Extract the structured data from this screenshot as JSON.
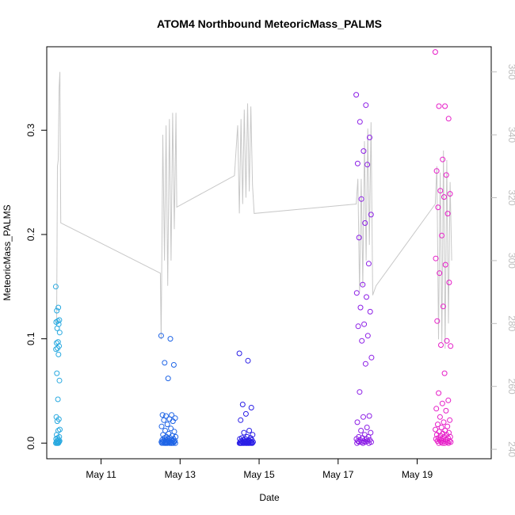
{
  "chart_data": {
    "type": "scatter",
    "title": "ATOM4 Northbound MeteoricMass_PALMS",
    "xlabel": "Date",
    "ylabel": "MeteoricMass_PALMS",
    "x_range": [
      "2018-05-09T15:00",
      "2018-05-20T21:00"
    ],
    "ylim": [
      -0.015,
      0.38
    ],
    "x_ticks": [
      {
        "date": "2018-05-11",
        "label": "May 11"
      },
      {
        "date": "2018-05-13",
        "label": "May 13"
      },
      {
        "date": "2018-05-15",
        "label": "May 15"
      },
      {
        "date": "2018-05-17",
        "label": "May 17"
      },
      {
        "date": "2018-05-19",
        "label": "May 19"
      }
    ],
    "y_ticks": [
      0.0,
      0.1,
      0.2,
      0.3
    ],
    "y_tick_labels": [
      "0.0",
      "0.1",
      "0.2",
      "0.3"
    ],
    "y2_range": [
      237,
      368
    ],
    "y2_ticks": [
      240,
      260,
      280,
      300,
      320,
      340,
      360
    ],
    "grid": false,
    "flights": [
      {
        "color": "#29a9e0",
        "start": "2018-05-09T20:30",
        "end": "2018-05-09T23:00",
        "values": [
          0.15,
          0.13,
          0.127,
          0.118,
          0.117,
          0.116,
          0.114,
          0.11,
          0.106,
          0.097,
          0.096,
          0.093,
          0.091,
          0.09,
          0.085,
          0.067,
          0.06,
          0.042,
          0.025,
          0.023,
          0.021,
          0.013,
          0.012,
          0.008,
          0.006,
          0.005,
          0.004,
          0.003,
          0.002,
          0.002,
          0.001,
          0.001,
          0.001,
          0.0,
          0.0,
          0.0,
          0.0
        ]
      },
      {
        "color": "#1e64e6",
        "start": "2018-05-12T12:30",
        "end": "2018-05-12T21:30",
        "values": [
          0.103,
          0.1,
          0.077,
          0.075,
          0.062,
          0.027,
          0.027,
          0.026,
          0.024,
          0.023,
          0.022,
          0.021,
          0.018,
          0.016,
          0.014,
          0.012,
          0.011,
          0.009,
          0.008,
          0.007,
          0.006,
          0.006,
          0.005,
          0.005,
          0.004,
          0.004,
          0.003,
          0.003,
          0.003,
          0.002,
          0.002,
          0.002,
          0.002,
          0.001,
          0.001,
          0.001,
          0.001,
          0.001,
          0.001,
          0.001,
          0.0,
          0.0,
          0.0,
          0.0,
          0.0,
          0.0,
          0.0,
          0.0,
          0.0,
          0.0
        ]
      },
      {
        "color": "#2a1ee6",
        "start": "2018-05-14T12:00",
        "end": "2018-05-14T20:30",
        "values": [
          0.086,
          0.079,
          0.037,
          0.034,
          0.028,
          0.022,
          0.012,
          0.01,
          0.008,
          0.006,
          0.005,
          0.005,
          0.004,
          0.004,
          0.003,
          0.003,
          0.003,
          0.002,
          0.002,
          0.002,
          0.001,
          0.001,
          0.001,
          0.001,
          0.001,
          0.001,
          0.0,
          0.0,
          0.0,
          0.0,
          0.0,
          0.0,
          0.0,
          0.0,
          0.0,
          0.0,
          0.0,
          0.0,
          0.0,
          0.0
        ]
      },
      {
        "color": "#8c1ee6",
        "start": "2018-05-17T11:00",
        "end": "2018-05-17T20:30",
        "values": [
          0.334,
          0.324,
          0.308,
          0.293,
          0.28,
          0.268,
          0.267,
          0.234,
          0.219,
          0.211,
          0.197,
          0.172,
          0.152,
          0.144,
          0.14,
          0.13,
          0.126,
          0.114,
          0.112,
          0.103,
          0.098,
          0.082,
          0.076,
          0.049,
          0.026,
          0.025,
          0.02,
          0.015,
          0.012,
          0.01,
          0.008,
          0.006,
          0.006,
          0.005,
          0.004,
          0.004,
          0.003,
          0.003,
          0.002,
          0.002,
          0.002,
          0.001,
          0.001,
          0.001,
          0.001,
          0.0,
          0.0,
          0.0
        ]
      },
      {
        "color": "#e61ec8",
        "start": "2018-05-19T11:00",
        "end": "2018-05-19T20:30",
        "values": [
          0.375,
          0.323,
          0.323,
          0.311,
          0.272,
          0.261,
          0.257,
          0.242,
          0.239,
          0.236,
          0.226,
          0.22,
          0.199,
          0.177,
          0.171,
          0.163,
          0.154,
          0.131,
          0.117,
          0.098,
          0.094,
          0.093,
          0.067,
          0.048,
          0.041,
          0.038,
          0.033,
          0.031,
          0.025,
          0.022,
          0.02,
          0.018,
          0.016,
          0.015,
          0.013,
          0.012,
          0.011,
          0.01,
          0.009,
          0.008,
          0.008,
          0.007,
          0.006,
          0.006,
          0.005,
          0.005,
          0.004,
          0.004,
          0.003,
          0.003,
          0.002,
          0.002,
          0.002,
          0.001,
          0.001,
          0.001,
          0.0,
          0.0,
          0.0,
          0.0
        ]
      }
    ],
    "altitude_line": {
      "color": "#c8c8c8",
      "points": [
        [
          "2018-05-09T21:00",
          280
        ],
        [
          "2018-05-09T21:30",
          330
        ],
        [
          "2018-05-09T22:00",
          332
        ],
        [
          "2018-05-09T22:30",
          355
        ],
        [
          "2018-05-09T23:00",
          360
        ],
        [
          "2018-05-09T23:30",
          312
        ],
        [
          "2018-05-12T12:00",
          296
        ],
        [
          "2018-05-12T12:30",
          275
        ],
        [
          "2018-05-12T13:30",
          340
        ],
        [
          "2018-05-12T14:30",
          300
        ],
        [
          "2018-05-12T15:30",
          343
        ],
        [
          "2018-05-12T16:30",
          292
        ],
        [
          "2018-05-12T17:30",
          345
        ],
        [
          "2018-05-12T18:30",
          300
        ],
        [
          "2018-05-12T19:30",
          347
        ],
        [
          "2018-05-12T20:30",
          310
        ],
        [
          "2018-05-12T21:30",
          347
        ],
        [
          "2018-05-12T22:00",
          317
        ],
        [
          "2018-05-14T09:00",
          327
        ],
        [
          "2018-05-14T11:00",
          343
        ],
        [
          "2018-05-14T12:00",
          315
        ],
        [
          "2018-05-14T13:00",
          345
        ],
        [
          "2018-05-14T14:00",
          318
        ],
        [
          "2018-05-14T15:00",
          348
        ],
        [
          "2018-05-14T16:00",
          320
        ],
        [
          "2018-05-14T17:00",
          350
        ],
        [
          "2018-05-14T18:00",
          322
        ],
        [
          "2018-05-14T19:00",
          349
        ],
        [
          "2018-05-14T20:00",
          324
        ],
        [
          "2018-05-14T21:00",
          315
        ],
        [
          "2018-05-17T11:00",
          318
        ],
        [
          "2018-05-17T12:00",
          326
        ],
        [
          "2018-05-17T13:00",
          290
        ],
        [
          "2018-05-17T14:00",
          326
        ],
        [
          "2018-05-17T15:00",
          292
        ],
        [
          "2018-05-17T16:00",
          338
        ],
        [
          "2018-05-17T17:00",
          300
        ],
        [
          "2018-05-17T18:00",
          342
        ],
        [
          "2018-05-17T19:00",
          305
        ],
        [
          "2018-05-17T20:00",
          344
        ],
        [
          "2018-05-17T21:00",
          289
        ],
        [
          "2018-05-17T23:00",
          292
        ],
        [
          "2018-05-19T11:00",
          318
        ],
        [
          "2018-05-19T12:00",
          330
        ],
        [
          "2018-05-19T13:00",
          275
        ],
        [
          "2018-05-19T14:00",
          328
        ],
        [
          "2018-05-19T15:00",
          274
        ],
        [
          "2018-05-19T16:00",
          335
        ],
        [
          "2018-05-19T17:00",
          272
        ],
        [
          "2018-05-19T18:00",
          332
        ],
        [
          "2018-05-19T19:00",
          280
        ],
        [
          "2018-05-19T20:00",
          325
        ],
        [
          "2018-05-19T21:00",
          300
        ]
      ]
    }
  }
}
